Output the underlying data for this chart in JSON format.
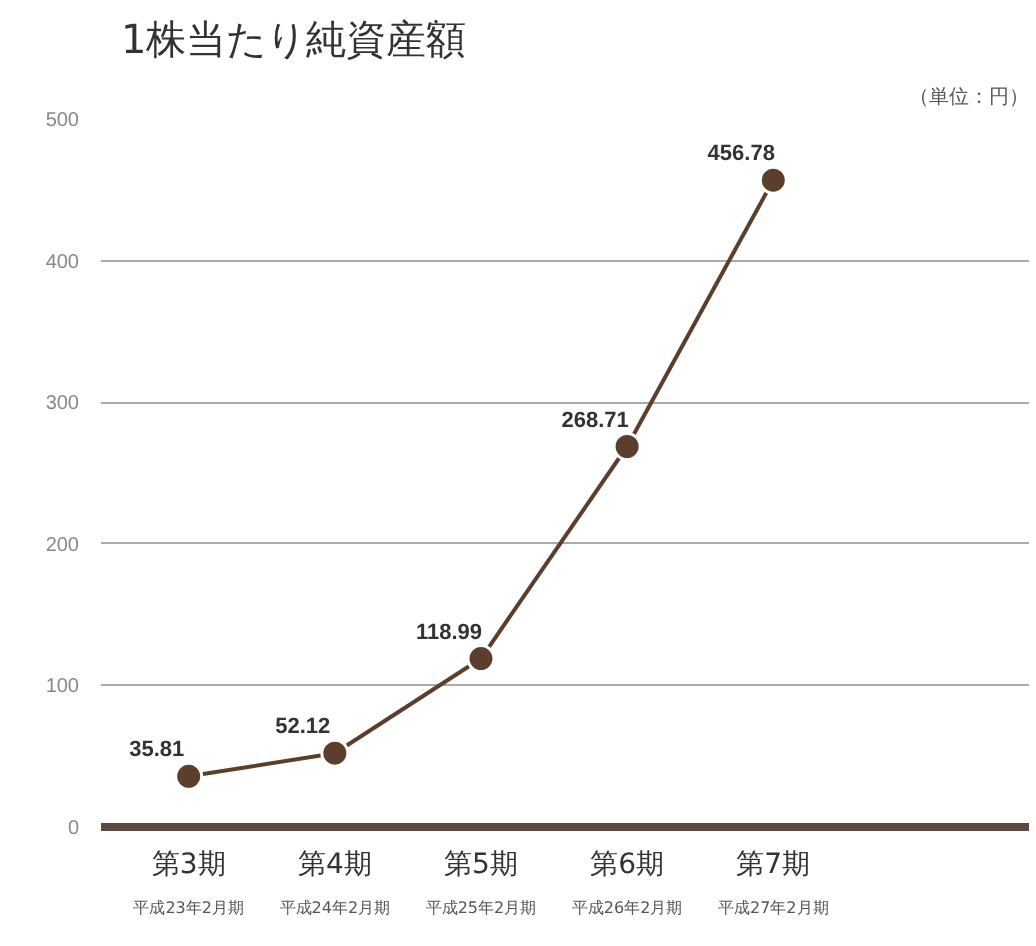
{
  "chart_data": {
    "type": "line",
    "title": "1株当たり純資産額",
    "annotations": [
      "（単位：円）",
      "平成23年2月期",
      "平成24年2月期",
      "平成25年2月期",
      "平成26年2月期",
      "平成27年2月期"
    ],
    "categories": [
      "第3期",
      "第4期",
      "第5期",
      "第6期",
      "第7期"
    ],
    "series": [
      {
        "color": "#5b3f2c",
        "values": [
          35.81,
          52.12,
          118.99,
          268.71,
          456.78
        ]
      }
    ],
    "ylim": [
      0,
      500
    ],
    "yticks": [
      0,
      100,
      200,
      300,
      400,
      500
    ],
    "grid": "y",
    "marker": "circle",
    "line_style": "solid",
    "data_labels": true
  }
}
